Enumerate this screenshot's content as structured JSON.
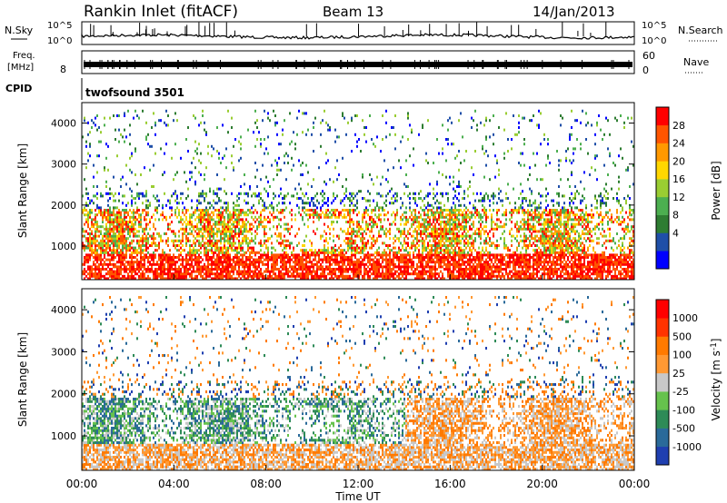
{
  "header": {
    "station": "Rankin Inlet (fitACF)",
    "beam": "Beam 13",
    "date": "14/Jan/2013"
  },
  "status_panels": {
    "nsky_label": "N.Sky",
    "nsearch_label": "N.Search",
    "noise_ticks": [
      "10^5",
      "10^0"
    ],
    "freq_label_top": "Freq.",
    "freq_label_bottom": "[MHz]",
    "freq_ticks": [
      "8"
    ],
    "nave_label": "Nave",
    "nave_ticks": [
      "60",
      "0"
    ],
    "cpid_label": "CPID",
    "cpid_value": "twofsound 3501"
  },
  "chart_data": [
    {
      "type": "heatmap",
      "name": "power",
      "xlabel": "",
      "ylabel": "Slant Range [km]",
      "x_range_hours": [
        0,
        24
      ],
      "y_range_km": [
        180,
        4500
      ],
      "y_ticks": [
        "1000",
        "2000",
        "3000",
        "4000"
      ],
      "colorbar_label": "Power [dB]",
      "colorbar_ticks": [
        "28",
        "24",
        "20",
        "16",
        "12",
        "8",
        "4"
      ],
      "colorscale": [
        "#0000ff",
        "#1f4fa8",
        "#2e7d32",
        "#4caf50",
        "#9acd32",
        "#ffd700",
        "#ff9900",
        "#ff5500",
        "#ff0000"
      ]
    },
    {
      "type": "heatmap",
      "name": "velocity",
      "xlabel": "Time UT",
      "ylabel": "Slant Range [km]",
      "x_range_hours": [
        0,
        24
      ],
      "y_range_km": [
        180,
        4500
      ],
      "x_ticks": [
        "00:00",
        "04:00",
        "08:00",
        "12:00",
        "16:00",
        "20:00",
        "00:00"
      ],
      "y_ticks": [
        "1000",
        "2000",
        "3000",
        "4000"
      ],
      "colorbar_label": "Velocity [m s",
      "colorbar_label_sup": "-1",
      "colorbar_label_end": "]",
      "colorbar_ticks": [
        "1000",
        "500",
        "100",
        "25",
        "-25",
        "-100",
        "-500",
        "-1000"
      ],
      "colorscale": [
        "#1f3fb0",
        "#2a6a9a",
        "#2e8b57",
        "#66c24d",
        "#c8c8c8",
        "#ff9933",
        "#ff7a00",
        "#ff3300",
        "#ff0000"
      ]
    }
  ]
}
